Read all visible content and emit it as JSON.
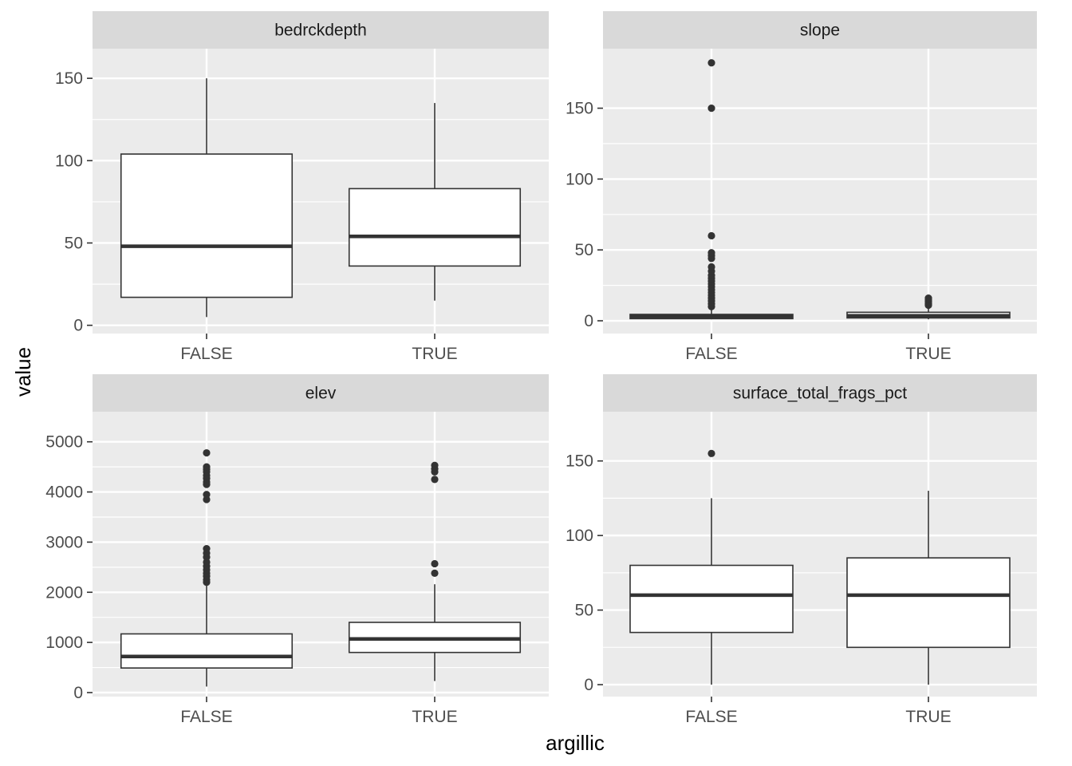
{
  "chart_data": {
    "type": "boxplot",
    "xlabel": "argillic",
    "ylabel": "value",
    "categories": [
      "FALSE",
      "TRUE"
    ],
    "panels": [
      {
        "name": "bedrckdepth",
        "ylim": [
          -5,
          168
        ],
        "yticks": [
          0,
          50,
          100,
          150
        ],
        "boxes": [
          {
            "category": "FALSE",
            "whisker_low": 5,
            "q1": 17,
            "median": 48,
            "q3": 104,
            "whisker_high": 150,
            "outliers": []
          },
          {
            "category": "TRUE",
            "whisker_low": 15,
            "q1": 36,
            "median": 54,
            "q3": 83,
            "whisker_high": 135,
            "outliers": []
          }
        ]
      },
      {
        "name": "slope",
        "ylim": [
          -9,
          192
        ],
        "yticks": [
          0,
          50,
          100,
          150
        ],
        "boxes": [
          {
            "category": "FALSE",
            "whisker_low": 1,
            "q1": 1.5,
            "median": 3,
            "q3": 4.5,
            "whisker_high": 9,
            "outliers": [
              10,
              12,
              14,
              16,
              18,
              20,
              22,
              24,
              26,
              28,
              30,
              32,
              35,
              38,
              44,
              46,
              48,
              60,
              150,
              182
            ]
          },
          {
            "category": "TRUE",
            "whisker_low": 1,
            "q1": 2,
            "median": 3.5,
            "q3": 6,
            "whisker_high": 10,
            "outliers": [
              11,
              12,
              13,
              14,
              15,
              16
            ]
          }
        ]
      },
      {
        "name": "elev",
        "ylim": [
          -80,
          5600
        ],
        "yticks": [
          0,
          1000,
          2000,
          3000,
          4000,
          5000
        ],
        "boxes": [
          {
            "category": "FALSE",
            "whisker_low": 120,
            "q1": 490,
            "median": 720,
            "q3": 1170,
            "whisker_high": 2180,
            "outliers": [
              2200,
              2250,
              2320,
              2380,
              2450,
              2520,
              2600,
              2700,
              2780,
              2870,
              3850,
              3950,
              4150,
              4200,
              4270,
              4330,
              4400,
              4450,
              4500,
              4780
            ]
          },
          {
            "category": "TRUE",
            "whisker_low": 230,
            "q1": 800,
            "median": 1070,
            "q3": 1400,
            "whisker_high": 2160,
            "outliers": [
              2380,
              2570,
              4250,
              4400,
              4460,
              4530
            ]
          }
        ]
      },
      {
        "name": "surface_total_frags_pct",
        "ylim": [
          -8,
          183
        ],
        "yticks": [
          0,
          50,
          100,
          150
        ],
        "boxes": [
          {
            "category": "FALSE",
            "whisker_low": 0,
            "q1": 35,
            "median": 60,
            "q3": 80,
            "whisker_high": 125,
            "outliers": [
              155
            ]
          },
          {
            "category": "TRUE",
            "whisker_low": 0,
            "q1": 25,
            "median": 60,
            "q3": 85,
            "whisker_high": 130,
            "outliers": []
          }
        ]
      }
    ]
  }
}
